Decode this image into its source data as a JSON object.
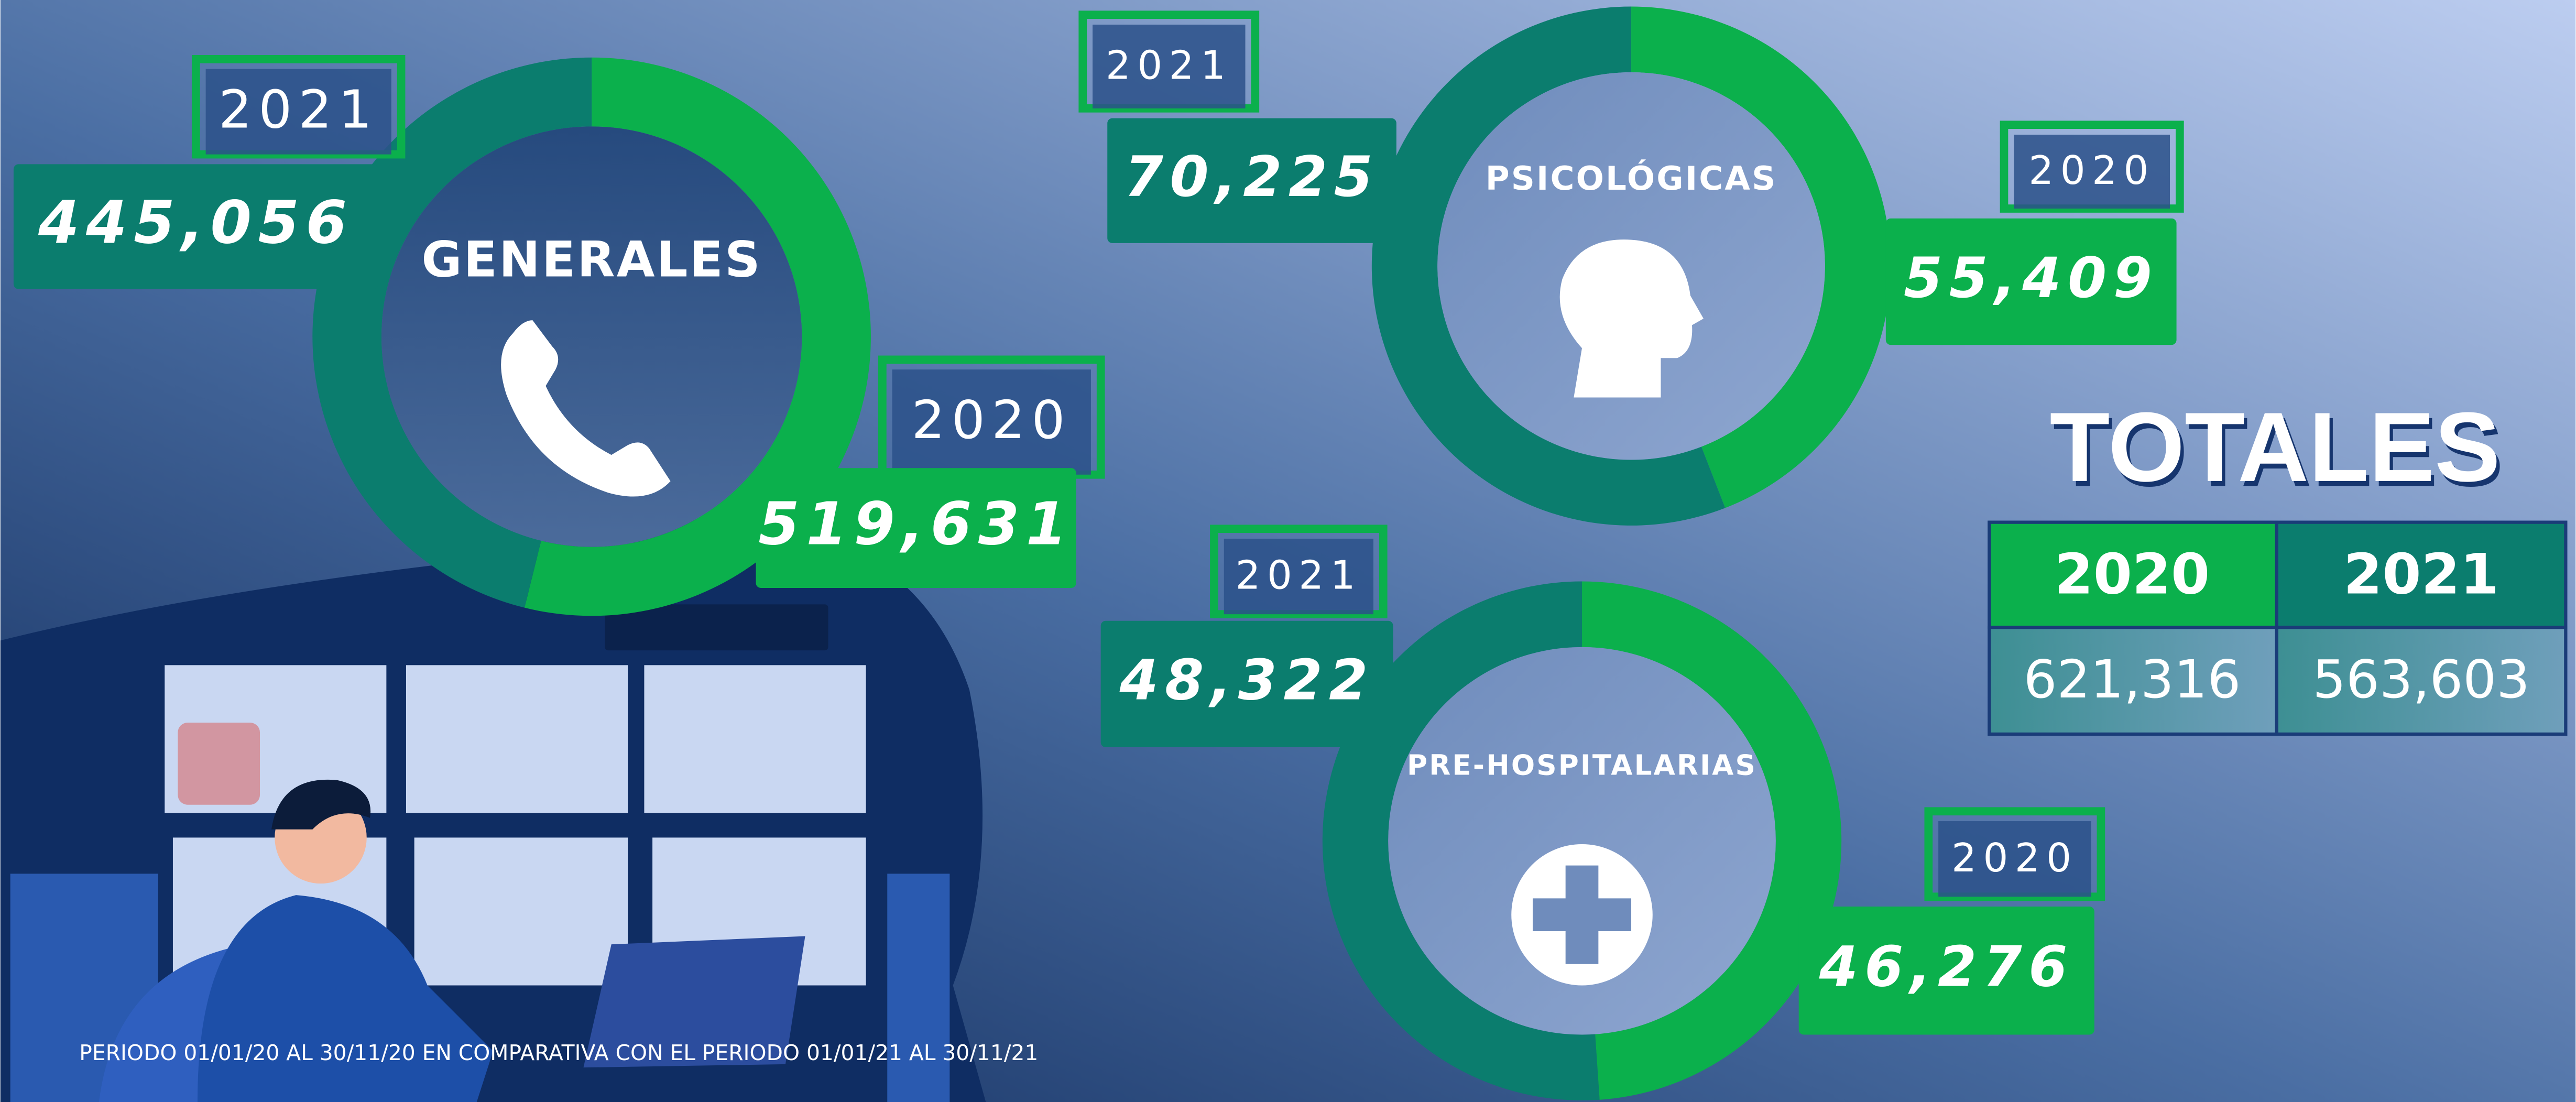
{
  "chart_data": [
    {
      "type": "donut",
      "title": "GENERALES",
      "categories": [
        "2021",
        "2020"
      ],
      "values": [
        445056,
        519631
      ],
      "value_labels": [
        "445,056",
        "519,631"
      ],
      "colors": [
        "#0b7d6e",
        "#0bb04c"
      ]
    },
    {
      "type": "donut",
      "title": "PSICOLÓGICAS",
      "categories": [
        "2021",
        "2020"
      ],
      "values": [
        70225,
        55409
      ],
      "value_labels": [
        "70,225",
        "55,409"
      ],
      "colors": [
        "#0b7d6e",
        "#0bb04c"
      ]
    },
    {
      "type": "donut",
      "title": "PRE-HOSPITALARIAS",
      "categories": [
        "2021",
        "2020"
      ],
      "values": [
        48322,
        46276
      ],
      "value_labels": [
        "48,322",
        "46,276"
      ],
      "colors": [
        "#0b7d6e",
        "#0bb04c"
      ]
    }
  ],
  "totals": {
    "title": "TOTALES",
    "header": [
      "2020",
      "2021"
    ],
    "row": [
      "621,316",
      "563,603"
    ]
  },
  "footnote": "PERIODO 01/01/20 AL 30/11/20 EN COMPARATIVA CON EL PERIODO 01/01/21 AL 30/11/21"
}
